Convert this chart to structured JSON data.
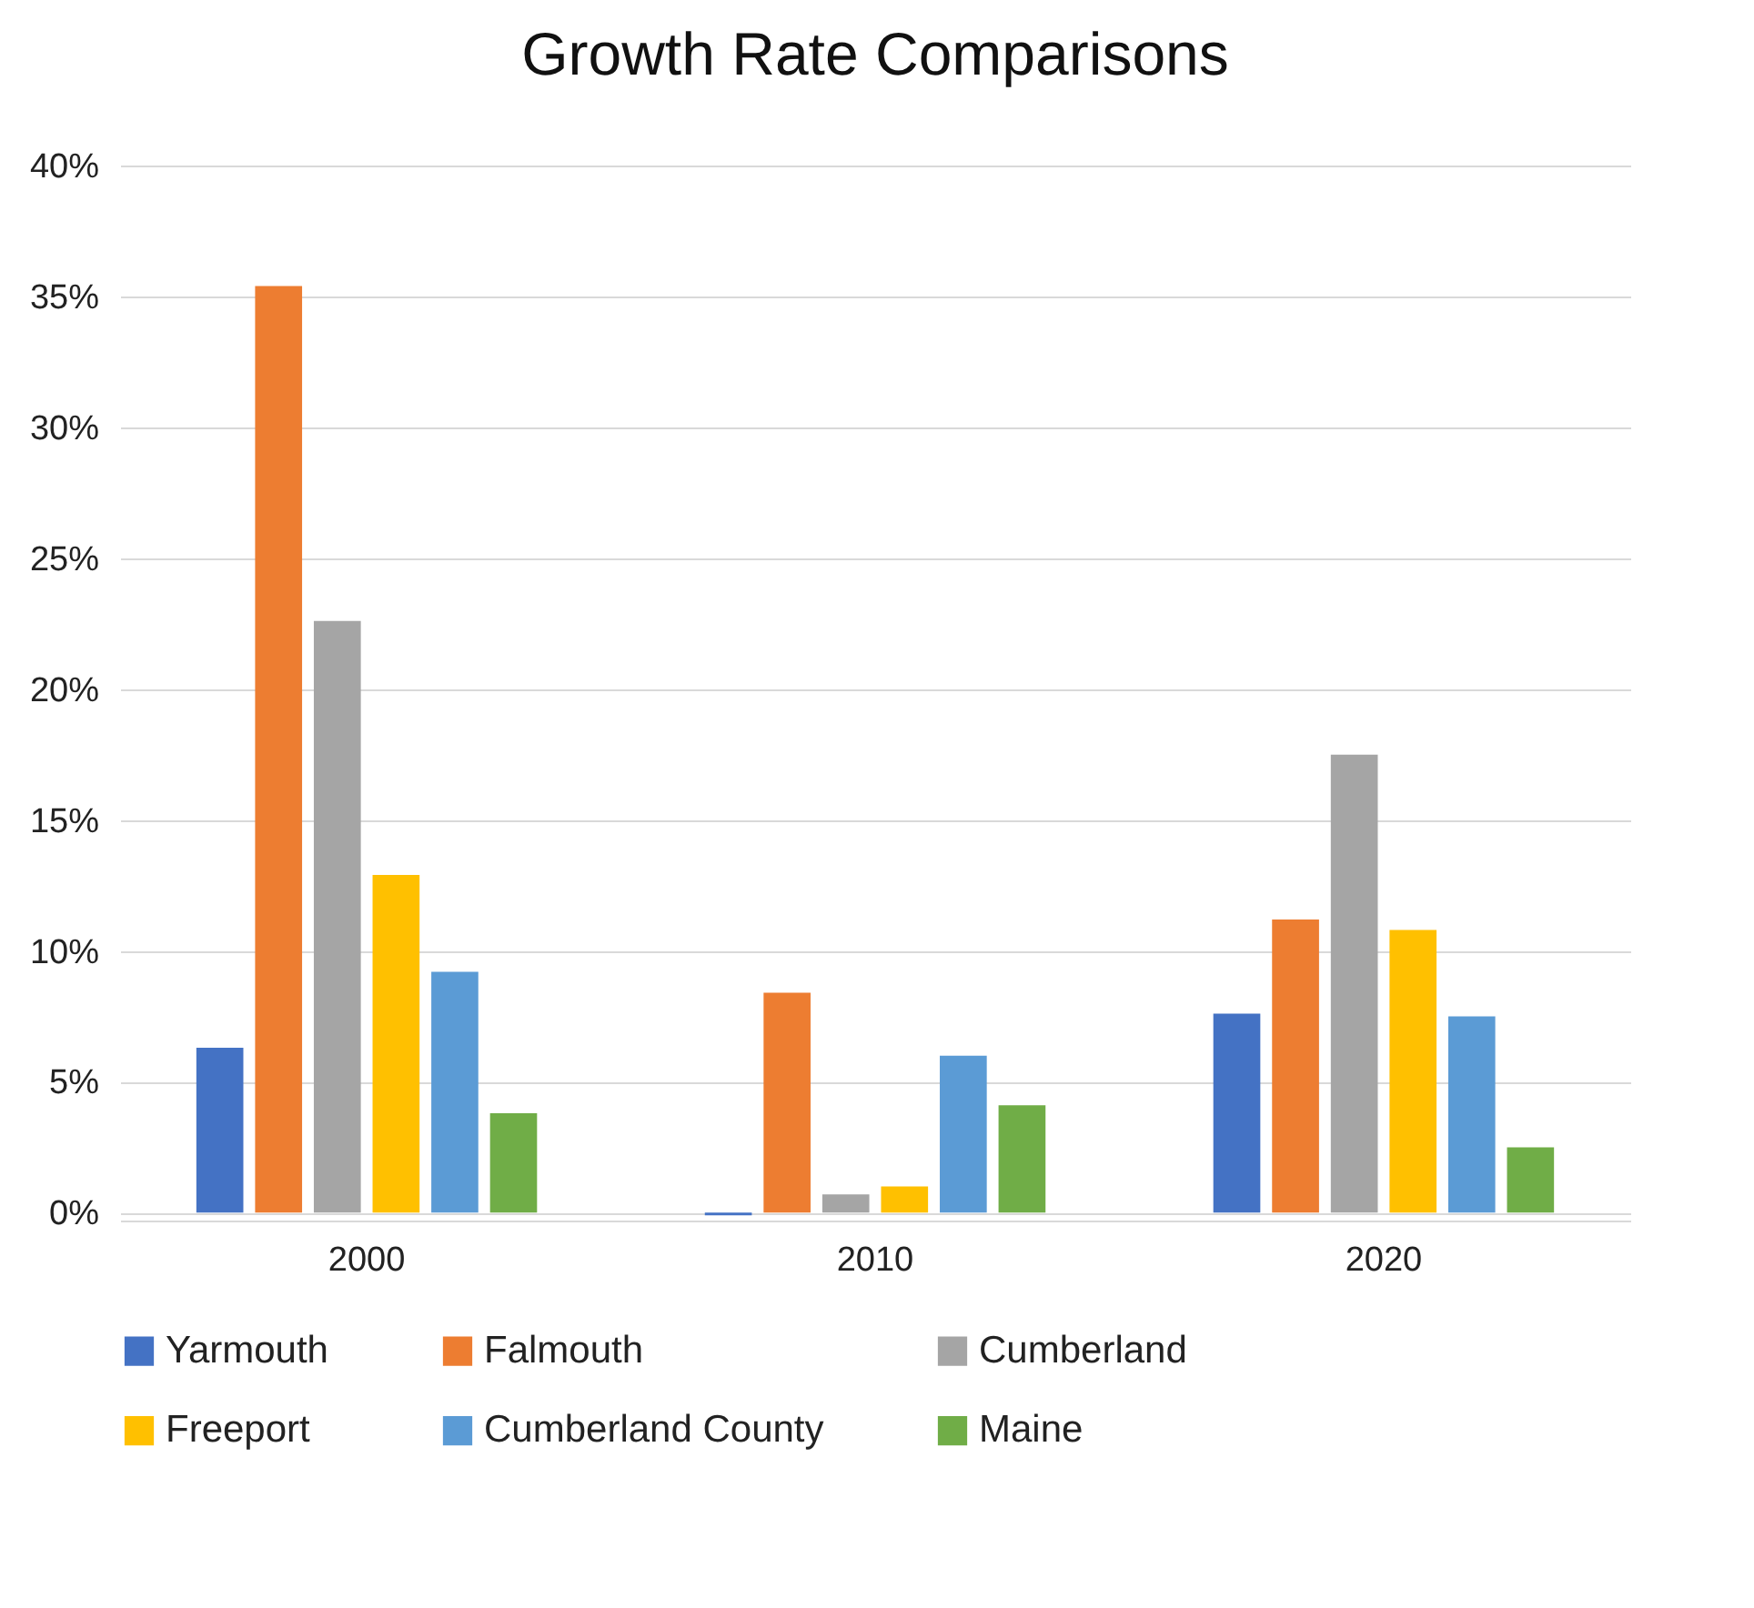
{
  "chart_data": {
    "type": "bar",
    "title": "Growth Rate Comparisons",
    "categories": [
      "2000",
      "2010",
      "2020"
    ],
    "series": [
      {
        "name": "Yarmouth",
        "color": "#4472c4",
        "values": [
          6.3,
          -0.1,
          7.6
        ]
      },
      {
        "name": "Falmouth",
        "color": "#ed7d31",
        "values": [
          35.4,
          8.4,
          11.2
        ]
      },
      {
        "name": "Cumberland",
        "color": "#a5a5a5",
        "values": [
          22.6,
          0.7,
          17.5
        ]
      },
      {
        "name": "Freeport",
        "color": "#ffc000",
        "values": [
          12.9,
          1.0,
          10.8
        ]
      },
      {
        "name": "Cumberland County",
        "color": "#5b9bd5",
        "values": [
          9.2,
          6.0,
          7.5
        ]
      },
      {
        "name": "Maine",
        "color": "#70ad47",
        "values": [
          3.8,
          4.1,
          2.5
        ]
      }
    ],
    "ylim": [
      -0.3,
      40
    ],
    "yticks": [
      {
        "value": 0,
        "label": "0%"
      },
      {
        "value": 5,
        "label": "5%"
      },
      {
        "value": 10,
        "label": "10%"
      },
      {
        "value": 15,
        "label": "15%"
      },
      {
        "value": 20,
        "label": "20%"
      },
      {
        "value": 25,
        "label": "25%"
      },
      {
        "value": 30,
        "label": "30%"
      },
      {
        "value": 35,
        "label": "35%"
      },
      {
        "value": 40,
        "label": "40%"
      }
    ],
    "grid": "y",
    "legend": "bottom"
  }
}
